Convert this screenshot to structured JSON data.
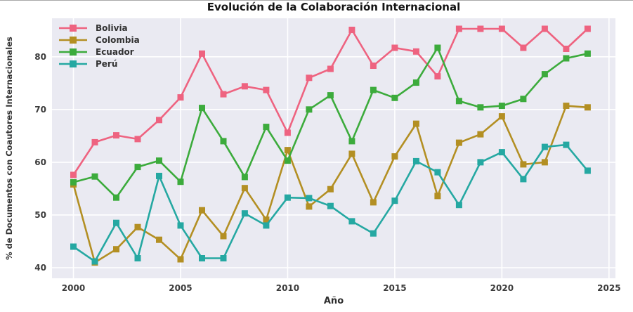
{
  "figure": {
    "title": "Evolución de la Colaboración Internacional"
  },
  "chart_data": {
    "type": "line",
    "title": "Evolución de la Colaboración Internacional",
    "xlabel": "Año",
    "ylabel": "% de Documentos con Coautores Internacionales",
    "x": [
      2000,
      2001,
      2002,
      2003,
      2004,
      2005,
      2006,
      2007,
      2008,
      2009,
      2010,
      2011,
      2012,
      2013,
      2014,
      2015,
      2016,
      2017,
      2018,
      2019,
      2020,
      2021,
      2022,
      2023,
      2024
    ],
    "series": [
      {
        "name": "Bolivia",
        "color": "#ee6380",
        "values": [
          57.6,
          63.8,
          65.1,
          64.4,
          68.0,
          72.3,
          80.6,
          72.9,
          74.4,
          73.7,
          65.6,
          76.0,
          77.7,
          85.1,
          78.3,
          81.7,
          81.0,
          76.3,
          85.3,
          85.3,
          85.3,
          81.7,
          85.3,
          81.5,
          85.3
        ]
      },
      {
        "name": "Colombia",
        "color": "#b38f23",
        "values": [
          55.8,
          41.0,
          43.5,
          47.7,
          45.3,
          41.6,
          50.9,
          46.0,
          55.1,
          49.1,
          62.3,
          51.6,
          54.9,
          61.6,
          52.4,
          61.1,
          67.3,
          53.6,
          63.7,
          65.3,
          68.7,
          59.6,
          60.0,
          70.7,
          70.4
        ]
      },
      {
        "name": "Ecuador",
        "color": "#3cab3c",
        "values": [
          56.2,
          57.3,
          53.3,
          59.1,
          60.3,
          56.3,
          70.3,
          64.0,
          57.2,
          66.7,
          60.3,
          70.0,
          72.7,
          64.0,
          73.7,
          72.2,
          75.1,
          81.7,
          71.6,
          70.4,
          70.7,
          72.0,
          76.7,
          79.7,
          80.6
        ]
      },
      {
        "name": "Perú",
        "color": "#25a8a2",
        "values": [
          44.0,
          41.2,
          48.5,
          41.8,
          57.4,
          48.0,
          41.8,
          41.8,
          50.3,
          48.0,
          53.3,
          53.2,
          51.7,
          48.8,
          46.5,
          52.7,
          60.2,
          58.1,
          51.9,
          60.0,
          61.9,
          56.8,
          62.9,
          63.3,
          58.4
        ]
      }
    ],
    "xticks": [
      2000,
      2005,
      2010,
      2015,
      2020,
      2025
    ],
    "yticks": [
      40,
      50,
      60,
      70,
      80
    ],
    "xlim": [
      1999.0,
      2025.3
    ],
    "ylim": [
      38.0,
      87.3
    ],
    "grid": true,
    "legend_position": "upper left",
    "style": {
      "plot_bg": "#eaeaf2",
      "grid_color": "#ffffff",
      "line_width": 2.6,
      "marker": "square",
      "marker_size": 9
    }
  }
}
